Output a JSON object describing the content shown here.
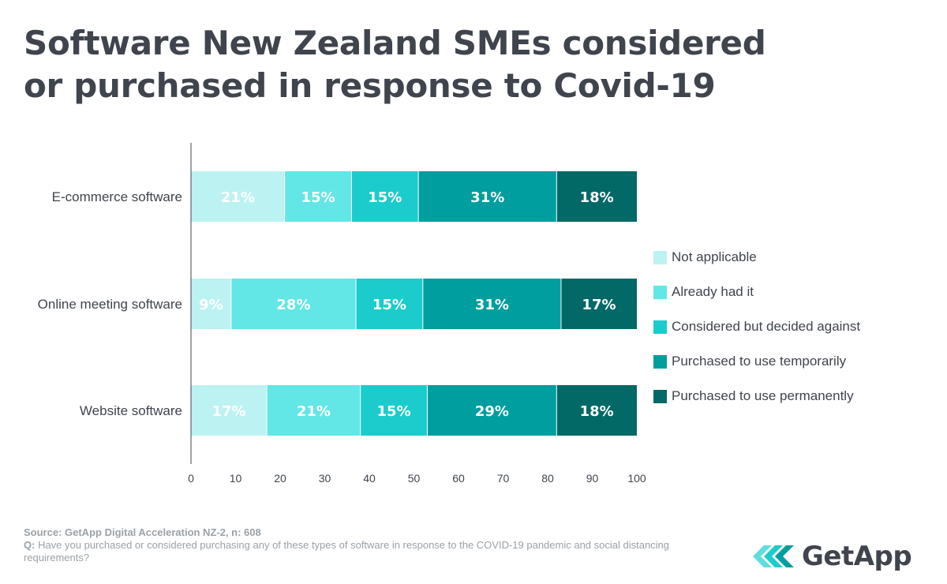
{
  "header": {
    "title_line1": "Software New Zealand SMEs considered",
    "title_line2": "or purchased in response to Covid-19"
  },
  "chart_data": {
    "type": "bar",
    "orientation": "horizontal",
    "stacked": true,
    "title": "Software New Zealand SMEs considered or purchased in response to Covid-19",
    "categories": [
      "E-commerce software",
      "Online meeting software",
      "Website software"
    ],
    "series": [
      {
        "name": "Not applicable",
        "color": "#bdf2f2",
        "values": [
          21,
          9,
          17
        ],
        "labels": [
          "21%",
          "9%",
          "17%"
        ]
      },
      {
        "name": "Already had it",
        "color": "#62e6e6",
        "values": [
          15,
          28,
          21
        ],
        "labels": [
          "15%",
          "28%",
          "21%"
        ]
      },
      {
        "name": "Considered but decided against",
        "color": "#1ccccc",
        "values": [
          15,
          15,
          15
        ],
        "labels": [
          "15%",
          "15%",
          "15%"
        ]
      },
      {
        "name": "Purchased to use temporarily",
        "color": "#009e9e",
        "values": [
          31,
          31,
          29
        ],
        "labels": [
          "31%",
          "31%",
          "29%"
        ]
      },
      {
        "name": "Purchased to use permanently",
        "color": "#036966",
        "values": [
          18,
          17,
          18
        ],
        "labels": [
          "18%",
          "17%",
          "18%"
        ]
      }
    ],
    "xlim": [
      0,
      100
    ],
    "xticks": [
      "0",
      "10",
      "20",
      "30",
      "40",
      "50",
      "60",
      "70",
      "80",
      "90",
      "100"
    ],
    "xlabel": "",
    "ylabel": "",
    "grid": false,
    "legend_position": "right"
  },
  "footer": {
    "source": "Source: GetApp Digital Acceleration NZ-2, n: 608",
    "question_prefix": "Q:",
    "question_text": " Have you purchased or considered purchasing any of these types of software in response to the COVID-19 pandemic and social distancing requirements?"
  },
  "logo": {
    "text": "GetApp",
    "colors": [
      "#60dddd",
      "#1ccccc",
      "#009e9e"
    ]
  },
  "colors": {
    "text": "#3f444d",
    "muted": "#9aa1a7",
    "axis": "#3f444d"
  }
}
